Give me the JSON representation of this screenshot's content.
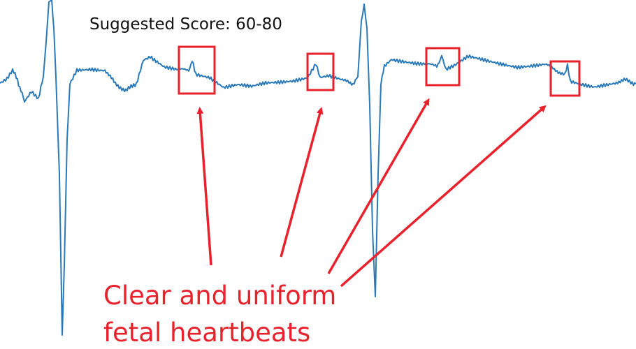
{
  "score_label": "Suggested Score: 60-80",
  "annotation": [
    "Clear and uniform",
    "fetal heartbeats"
  ]
}
